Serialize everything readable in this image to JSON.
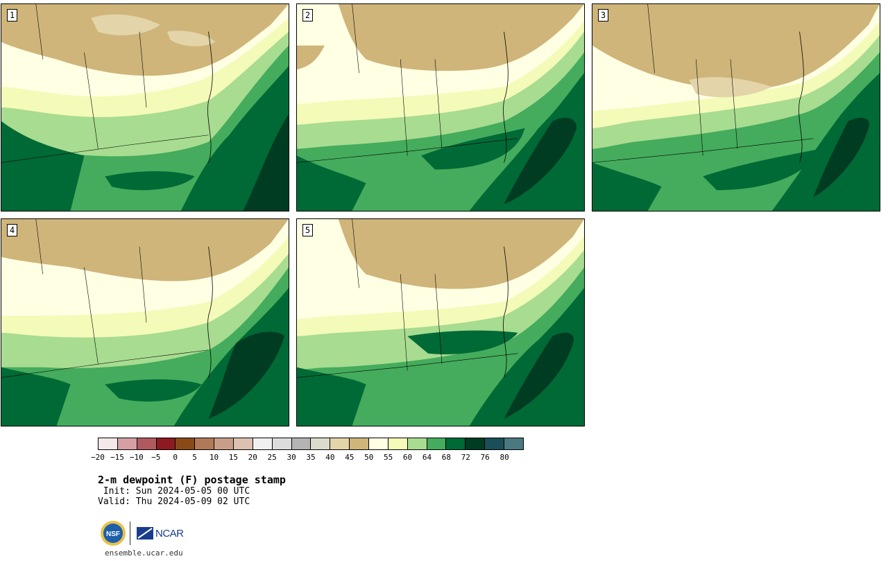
{
  "panels": [
    {
      "number": "1"
    },
    {
      "number": "2"
    },
    {
      "number": "3"
    },
    {
      "number": "4"
    },
    {
      "number": "5"
    }
  ],
  "colorbar": {
    "colors": [
      "#f5e8e8",
      "#d4a0a4",
      "#b05a60",
      "#8c1a22",
      "#8a4a18",
      "#b07a58",
      "#c89e88",
      "#dcc0b0",
      "#f0f0f0",
      "#dcdcdc",
      "#b4b4b4",
      "#dcdccc",
      "#e4d4aa",
      "#cfb57a",
      "#ffffe4",
      "#f4fab8",
      "#a8dc90",
      "#44ac5c",
      "#006a36",
      "#003c22",
      "#1a4e58",
      "#4c7880"
    ],
    "tick_labels": [
      "-20",
      "-15",
      "-10",
      "-5",
      "0",
      "5",
      "10",
      "15",
      "20",
      "25",
      "30",
      "35",
      "40",
      "45",
      "50",
      "55",
      "60",
      "64",
      "68",
      "72",
      "76",
      "80"
    ]
  },
  "title": "2-m dewpoint (F) postage stamp",
  "init": " Init: Sun 2024-05-05 00 UTC",
  "valid": "Valid: Thu 2024-05-09 02 UTC",
  "logos": {
    "nsf": "NSF",
    "ncar": "NCAR"
  },
  "website": "ensemble.ucar.edu"
}
